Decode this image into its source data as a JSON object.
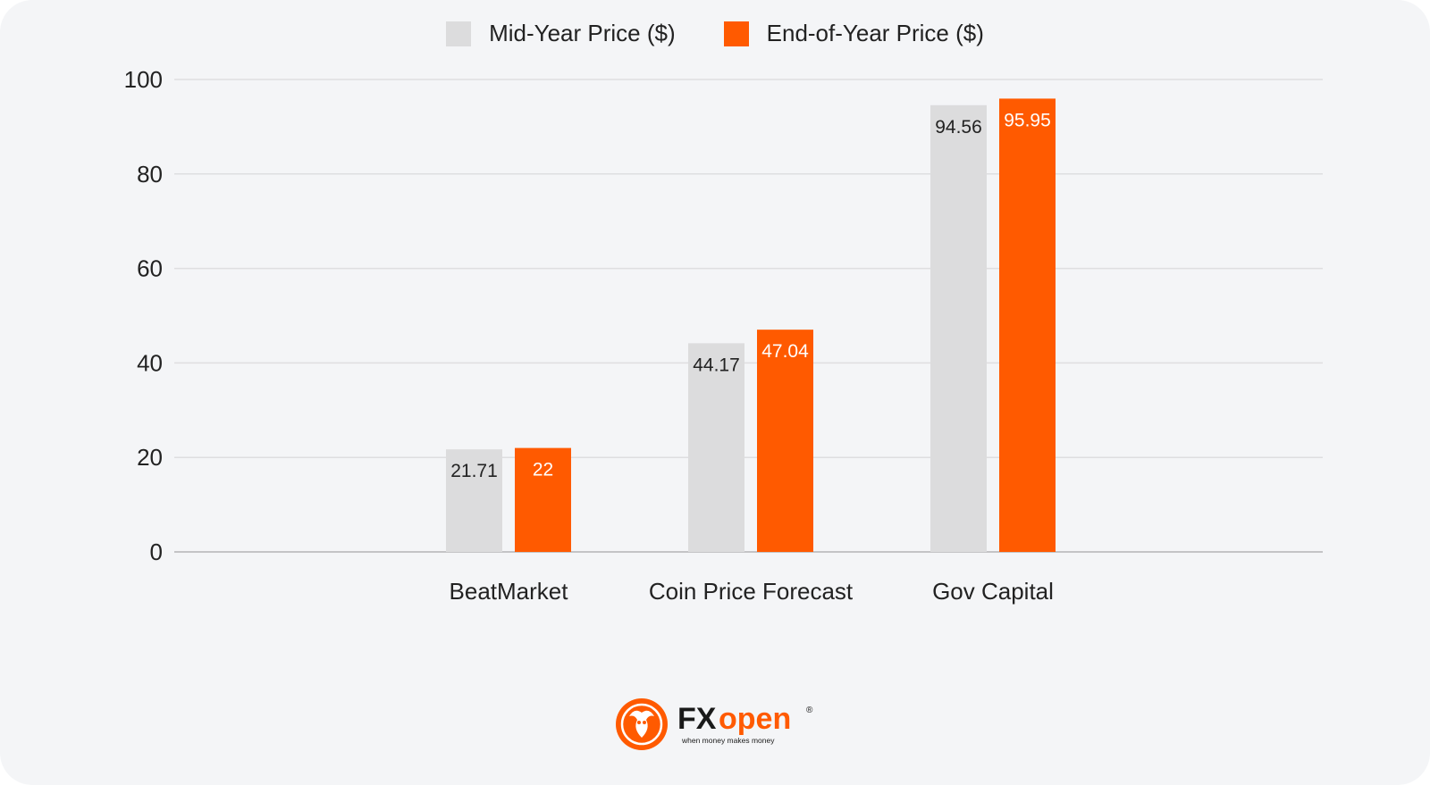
{
  "chart_data": {
    "type": "bar",
    "categories": [
      "BeatMarket",
      "Coin Price Forecast",
      "Gov Capital"
    ],
    "series": [
      {
        "name": "Mid-Year Price ($)",
        "values": [
          21.71,
          44.17,
          94.56
        ],
        "color": "#dcdcdd",
        "label_color": "#222222"
      },
      {
        "name": "End-of-Year Price ($)",
        "values": [
          22,
          47.04,
          95.95
        ],
        "color": "#ff5a00",
        "label_color": "#ffffff"
      }
    ],
    "value_labels": [
      [
        "21.71",
        "44.17",
        "94.56"
      ],
      [
        "22",
        "47.04",
        "95.95"
      ]
    ],
    "yticks": [
      0,
      20,
      40,
      60,
      80,
      100
    ],
    "ylim": [
      0,
      100
    ],
    "grid": true,
    "legend_position": "top-center"
  },
  "logo": {
    "brand": "FXopen",
    "tagline": "when money makes money",
    "icon": "bull-icon",
    "accent": "#ff5a00"
  }
}
